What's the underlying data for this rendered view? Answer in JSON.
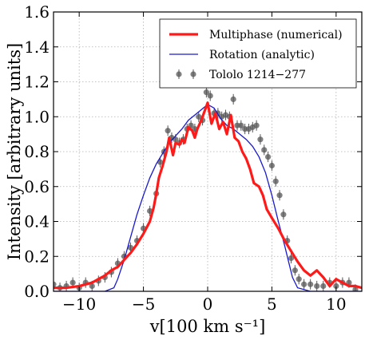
{
  "chart_data": {
    "type": "line",
    "xlabel": "v[100 km s⁻¹]",
    "ylabel": "Intensity [arbitrary units]",
    "xlim": [
      -12,
      12
    ],
    "ylim": [
      0,
      1.6
    ],
    "grid": true,
    "legend_position": "top-right",
    "xticks": [
      -10,
      -5,
      0,
      5,
      10
    ],
    "xtick_labels": [
      "−10",
      "−5",
      "0",
      "5",
      "10"
    ],
    "yticks": [
      0.0,
      0.2,
      0.4,
      0.6,
      0.8,
      1.0,
      1.2,
      1.4,
      1.6
    ],
    "ytick_labels": [
      "0.0",
      "0.2",
      "0.4",
      "0.6",
      "0.8",
      "1.0",
      "1.2",
      "1.4",
      "1.6"
    ],
    "series": [
      {
        "name": "Multiphase (numerical)",
        "color": "#ff1a1a",
        "style": "thick-line",
        "x": [
          -12,
          -11,
          -10,
          -9.5,
          -9,
          -8.5,
          -8,
          -7.5,
          -7,
          -6.5,
          -6,
          -5.5,
          -5,
          -4.5,
          -4.2,
          -4,
          -3.8,
          -3.5,
          -3.2,
          -3,
          -2.7,
          -2.5,
          -2.2,
          -2,
          -1.8,
          -1.5,
          -1.2,
          -1,
          -0.8,
          -0.5,
          -0.3,
          0,
          0.3,
          0.6,
          0.9,
          1.2,
          1.5,
          1.8,
          2.1,
          2.4,
          2.7,
          3,
          3.3,
          3.6,
          4,
          4.3,
          4.6,
          5,
          5.5,
          6,
          6.5,
          7,
          7.5,
          8,
          8.5,
          9,
          9.5,
          10,
          10.5,
          11,
          11.5,
          12
        ],
        "y": [
          0.02,
          0.02,
          0.03,
          0.04,
          0.05,
          0.07,
          0.09,
          0.12,
          0.14,
          0.18,
          0.22,
          0.27,
          0.33,
          0.4,
          0.48,
          0.56,
          0.65,
          0.72,
          0.8,
          0.88,
          0.78,
          0.85,
          0.84,
          0.87,
          0.85,
          0.94,
          0.92,
          0.88,
          0.93,
          0.98,
          1.02,
          1.08,
          0.96,
          1.02,
          0.93,
          0.97,
          0.9,
          1.01,
          0.88,
          0.86,
          0.8,
          0.76,
          0.7,
          0.62,
          0.6,
          0.55,
          0.47,
          0.42,
          0.36,
          0.29,
          0.23,
          0.17,
          0.12,
          0.09,
          0.12,
          0.08,
          0.03,
          0.07,
          0.05,
          0.03,
          0.03,
          0.02
        ]
      },
      {
        "name": "Rotation (analytic)",
        "color": "#1a1acc",
        "style": "thin-line",
        "x": [
          -12,
          -10,
          -8,
          -7.3,
          -7,
          -6.5,
          -6,
          -5.5,
          -5,
          -4.5,
          -4,
          -3.5,
          -3,
          -2.5,
          -2,
          -1.5,
          -1,
          -0.5,
          0,
          0.5,
          1,
          1.5,
          2,
          2.5,
          3,
          3.5,
          4,
          4.5,
          5,
          5.5,
          6,
          6.3,
          6.6,
          7,
          7.5,
          8,
          10,
          12
        ],
        "y": [
          0.0,
          0.0,
          0.0,
          0.02,
          0.07,
          0.18,
          0.31,
          0.44,
          0.55,
          0.65,
          0.73,
          0.79,
          0.85,
          0.89,
          0.93,
          0.98,
          1.01,
          1.04,
          1.07,
          1.05,
          0.99,
          0.95,
          0.93,
          0.9,
          0.87,
          0.83,
          0.77,
          0.68,
          0.55,
          0.4,
          0.26,
          0.17,
          0.08,
          0.02,
          0.01,
          0.0,
          0.0,
          0.0
        ]
      },
      {
        "name": "Tololo 1214−277",
        "color": "#555555",
        "style": "errorbar-points",
        "yerr": 0.03,
        "x": [
          -12,
          -11.5,
          -11,
          -10.5,
          -10,
          -9.5,
          -9,
          -8.5,
          -8,
          -7.5,
          -7,
          -6.5,
          -6,
          -5.5,
          -5,
          -4.5,
          -4,
          -3.7,
          -3.4,
          -3.1,
          -2.8,
          -2.5,
          -2.2,
          -1.9,
          -1.6,
          -1.3,
          -1,
          -0.7,
          -0.4,
          -0.1,
          0.2,
          0.5,
          0.8,
          1.1,
          1.4,
          1.7,
          2,
          2.3,
          2.6,
          2.9,
          3.2,
          3.5,
          3.8,
          4.1,
          4.4,
          4.7,
          5,
          5.3,
          5.6,
          5.9,
          6.2,
          6.5,
          6.8,
          7.1,
          7.5,
          8,
          8.5,
          9,
          9.5,
          10,
          10.5,
          11,
          11.5
        ],
        "y": [
          0.04,
          0.02,
          0.03,
          0.05,
          0.02,
          0.05,
          0.03,
          0.06,
          0.08,
          0.11,
          0.16,
          0.2,
          0.25,
          0.29,
          0.36,
          0.46,
          0.56,
          0.74,
          0.8,
          0.92,
          0.88,
          0.87,
          0.85,
          0.87,
          0.93,
          0.95,
          0.93,
          1.0,
          0.98,
          1.14,
          1.12,
          1.02,
          1.02,
          1.0,
          1.01,
          1.0,
          1.1,
          0.95,
          0.95,
          0.93,
          0.93,
          0.94,
          0.95,
          0.87,
          0.81,
          0.77,
          0.72,
          0.63,
          0.55,
          0.44,
          0.29,
          0.19,
          0.12,
          0.07,
          0.04,
          0.04,
          0.03,
          0.03,
          0.05,
          0.03,
          0.05,
          0.05,
          0.01
        ]
      }
    ]
  }
}
